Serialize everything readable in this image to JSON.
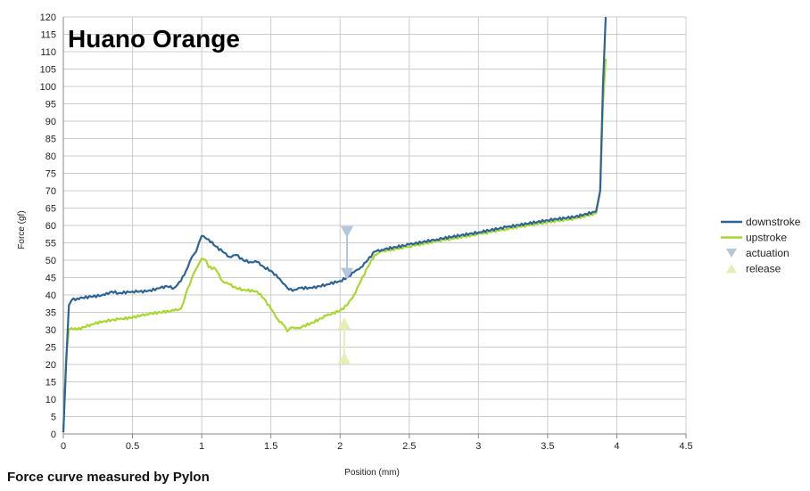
{
  "chart_data": {
    "type": "line",
    "title": "Huano Orange",
    "xlabel": "Position (mm)",
    "ylabel": "Force (gf)",
    "xlim": [
      0,
      4.5
    ],
    "ylim": [
      0,
      120
    ],
    "x_ticks": [
      "0",
      "0.5",
      "1",
      "1.5",
      "2",
      "2.5",
      "3",
      "3.5",
      "4",
      "4.5"
    ],
    "y_ticks": [
      "0",
      "5",
      "10",
      "15",
      "20",
      "25",
      "30",
      "35",
      "40",
      "45",
      "50",
      "55",
      "60",
      "65",
      "70",
      "75",
      "80",
      "85",
      "90",
      "95",
      "100",
      "105",
      "110",
      "115",
      "120"
    ],
    "grid": true,
    "legend_position": "right",
    "series": [
      {
        "name": "downstroke",
        "color": "#2e6494",
        "x": [
          0.0,
          0.02,
          0.04,
          0.06,
          0.1,
          0.2,
          0.3,
          0.35,
          0.4,
          0.5,
          0.6,
          0.7,
          0.75,
          0.8,
          0.85,
          0.9,
          0.93,
          0.96,
          0.98,
          1.0,
          1.05,
          1.1,
          1.15,
          1.2,
          1.25,
          1.3,
          1.35,
          1.4,
          1.45,
          1.5,
          1.55,
          1.6,
          1.63,
          1.67,
          1.7,
          1.8,
          1.9,
          2.0,
          2.05,
          2.1,
          2.15,
          2.2,
          2.25,
          2.3,
          2.5,
          2.7,
          3.0,
          3.2,
          3.5,
          3.7,
          3.85,
          3.88,
          3.9,
          3.92
        ],
        "y": [
          0.5,
          20,
          37,
          38.5,
          39,
          39.5,
          40,
          41,
          40.5,
          41,
          41,
          42,
          42.5,
          42,
          44,
          48,
          51,
          52.5,
          55,
          57,
          56,
          54,
          52.5,
          51,
          51.5,
          50,
          49.5,
          49.5,
          48,
          47,
          45,
          43,
          41.5,
          41.5,
          42,
          42,
          43,
          44,
          45,
          46.5,
          48,
          50,
          52.5,
          53,
          54.5,
          56,
          58,
          59.5,
          61.5,
          62.5,
          64,
          70,
          100,
          120
        ]
      },
      {
        "name": "upstroke",
        "color": "#a8d830",
        "x": [
          0.0,
          0.02,
          0.04,
          0.06,
          0.1,
          0.2,
          0.3,
          0.4,
          0.5,
          0.6,
          0.7,
          0.8,
          0.85,
          0.87,
          0.9,
          0.93,
          0.96,
          0.98,
          1.0,
          1.03,
          1.05,
          1.1,
          1.15,
          1.2,
          1.25,
          1.3,
          1.4,
          1.45,
          1.5,
          1.55,
          1.6,
          1.62,
          1.64,
          1.67,
          1.7,
          1.8,
          1.9,
          2.0,
          2.05,
          2.1,
          2.15,
          2.2,
          2.25,
          2.3,
          2.5,
          2.7,
          3.0,
          3.2,
          3.5,
          3.7,
          3.85,
          3.88,
          3.9,
          3.92
        ],
        "y": [
          0.5,
          22,
          30,
          30.5,
          30,
          31.5,
          32.5,
          33,
          33.5,
          34.5,
          35,
          35.5,
          36,
          38,
          42,
          45,
          47.5,
          49,
          50.5,
          50,
          48,
          47.5,
          44,
          43,
          42,
          41.5,
          41,
          39,
          36,
          33,
          31,
          29.5,
          30.5,
          30.5,
          30.5,
          32,
          34,
          35.5,
          37,
          40,
          44,
          48,
          51.5,
          52.5,
          54,
          55.5,
          57.5,
          59,
          61,
          62,
          63.5,
          70,
          95,
          108
        ]
      }
    ],
    "markers": [
      {
        "name": "actuation",
        "color": "#b4c6dc",
        "x": 2.05,
        "y": [
          58,
          46
        ]
      },
      {
        "name": "release",
        "color": "#e2f0b4",
        "x": 2.03,
        "y": [
          32,
          22
        ]
      }
    ],
    "legend": [
      {
        "label": "downstroke",
        "color": "#2e6494",
        "glyph": "line"
      },
      {
        "label": "upstroke",
        "color": "#a8d830",
        "glyph": "line"
      },
      {
        "label": "actuation",
        "color": "#b4c6dc",
        "glyph": "down-triangle"
      },
      {
        "label": "release",
        "color": "#e2f0b4",
        "glyph": "up-triangle"
      }
    ]
  },
  "caption": "Force curve measured by Pylon"
}
